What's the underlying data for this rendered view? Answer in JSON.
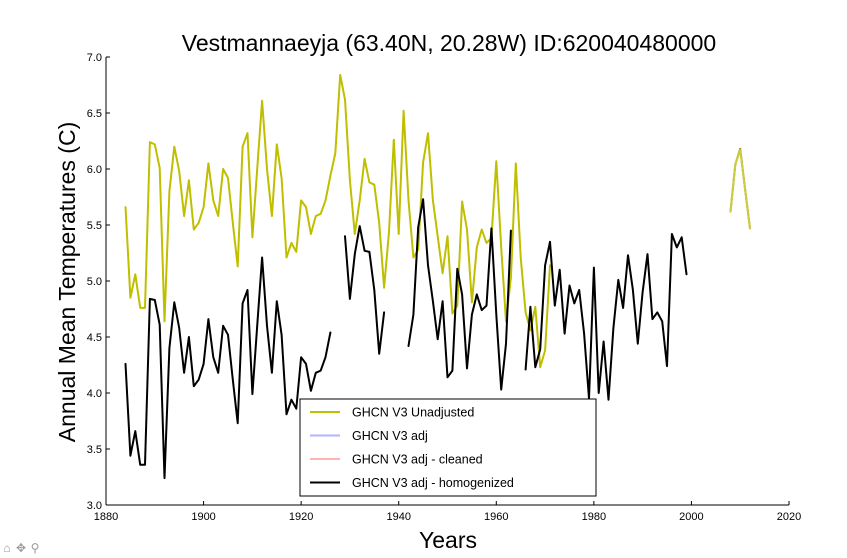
{
  "figure": {
    "title": "Vestmannaeyja (63.40N, 20.28W) ID:620040480000",
    "toolbar": [
      {
        "name": "home-icon",
        "glyph": "⌂"
      },
      {
        "name": "pan-icon",
        "glyph": "✥"
      },
      {
        "name": "zoom-icon",
        "glyph": "⚲"
      }
    ]
  },
  "chart_data": {
    "type": "line",
    "title": "Vestmannaeyja (63.40N, 20.28W) ID:620040480000",
    "xlabel": "Years",
    "ylabel": "Annual Mean Temperatures (C)",
    "xlim": [
      1880,
      2020
    ],
    "ylim": [
      3.0,
      7.0
    ],
    "xticks": [
      1880,
      1900,
      1920,
      1940,
      1960,
      1980,
      2000,
      2020
    ],
    "yticks": [
      3.0,
      3.5,
      4.0,
      4.5,
      5.0,
      5.5,
      6.0,
      6.5,
      7.0
    ],
    "grid": false,
    "legend_position": "lower-center",
    "series": [
      {
        "name": "GHCN V3 Unadjusted",
        "color": "#bfbf00",
        "segments": [
          [
            [
              1884,
              5.66
            ],
            [
              1885,
              4.85
            ],
            [
              1886,
              5.06
            ],
            [
              1887,
              4.76
            ],
            [
              1888,
              4.76
            ],
            [
              1889,
              6.24
            ],
            [
              1890,
              6.22
            ],
            [
              1891,
              6.01
            ],
            [
              1892,
              4.64
            ],
            [
              1893,
              5.8
            ],
            [
              1894,
              6.2
            ],
            [
              1895,
              5.98
            ],
            [
              1896,
              5.58
            ],
            [
              1897,
              5.9
            ],
            [
              1898,
              5.46
            ],
            [
              1899,
              5.52
            ],
            [
              1900,
              5.66
            ],
            [
              1901,
              6.05
            ],
            [
              1902,
              5.72
            ],
            [
              1903,
              5.58
            ],
            [
              1904,
              6.0
            ],
            [
              1905,
              5.92
            ],
            [
              1906,
              5.52
            ],
            [
              1907,
              5.13
            ],
            [
              1908,
              6.2
            ],
            [
              1909,
              6.32
            ],
            [
              1910,
              5.39
            ],
            [
              1911,
              6.0
            ],
            [
              1912,
              6.61
            ],
            [
              1913,
              6.0
            ],
            [
              1914,
              5.58
            ],
            [
              1915,
              6.22
            ],
            [
              1916,
              5.92
            ],
            [
              1917,
              5.21
            ],
            [
              1918,
              5.34
            ],
            [
              1919,
              5.26
            ],
            [
              1920,
              5.72
            ],
            [
              1921,
              5.66
            ],
            [
              1922,
              5.42
            ],
            [
              1923,
              5.58
            ],
            [
              1924,
              5.6
            ],
            [
              1925,
              5.72
            ],
            [
              1926,
              5.94
            ],
            [
              1927,
              6.14
            ],
            [
              1928,
              6.84
            ],
            [
              1929,
              6.62
            ]
          ],
          [
            [
              1929,
              6.62
            ],
            [
              1930,
              5.9
            ],
            [
              1931,
              5.42
            ],
            [
              1932,
              5.72
            ],
            [
              1933,
              6.09
            ],
            [
              1934,
              5.88
            ],
            [
              1935,
              5.86
            ],
            [
              1936,
              5.52
            ],
            [
              1937,
              4.94
            ],
            [
              1938,
              5.44
            ],
            [
              1939,
              6.26
            ]
          ],
          [
            [
              1939,
              6.26
            ],
            [
              1940,
              5.42
            ],
            [
              1941,
              6.52
            ],
            [
              1942,
              5.72
            ],
            [
              1943,
              5.21
            ],
            [
              1944,
              5.28
            ],
            [
              1945,
              6.06
            ],
            [
              1946,
              6.32
            ],
            [
              1947,
              5.72
            ],
            [
              1948,
              5.4
            ],
            [
              1949,
              5.07
            ],
            [
              1950,
              5.4
            ],
            [
              1951,
              4.71
            ],
            [
              1952,
              4.78
            ],
            [
              1953,
              5.71
            ],
            [
              1954,
              5.46
            ],
            [
              1955,
              4.81
            ],
            [
              1956,
              5.3
            ],
            [
              1957,
              5.46
            ],
            [
              1958,
              5.34
            ],
            [
              1959,
              5.38
            ],
            [
              1960,
              6.07
            ],
            [
              1961,
              5.3
            ],
            [
              1962,
              4.64
            ],
            [
              1963,
              5.03
            ],
            [
              1964,
              6.05
            ],
            [
              1965,
              5.21
            ],
            [
              1966,
              4.72
            ],
            [
              1967,
              4.56
            ],
            [
              1968,
              4.77
            ],
            [
              1969,
              4.23
            ],
            [
              1970,
              4.38
            ],
            [
              1971,
              5.14
            ]
          ]
        ]
      },
      {
        "name": "GHCN V3 adj",
        "color": "#b3b3ff",
        "segments": []
      },
      {
        "name": "GHCN V3 adj - cleaned",
        "color": "#ffb3b3",
        "segments": []
      },
      {
        "name": "GHCN V3 adj - homogenized",
        "color": "#000000",
        "segments": [
          [
            [
              1884,
              4.26
            ],
            [
              1885,
              3.44
            ],
            [
              1886,
              3.66
            ],
            [
              1887,
              3.36
            ],
            [
              1888,
              3.36
            ],
            [
              1889,
              4.84
            ],
            [
              1890,
              4.83
            ],
            [
              1891,
              4.61
            ],
            [
              1892,
              3.24
            ],
            [
              1893,
              4.4
            ],
            [
              1894,
              4.81
            ],
            [
              1895,
              4.58
            ],
            [
              1896,
              4.18
            ],
            [
              1897,
              4.5
            ],
            [
              1898,
              4.06
            ],
            [
              1899,
              4.12
            ],
            [
              1900,
              4.26
            ],
            [
              1901,
              4.66
            ],
            [
              1902,
              4.32
            ],
            [
              1903,
              4.18
            ],
            [
              1904,
              4.6
            ],
            [
              1905,
              4.52
            ],
            [
              1906,
              4.12
            ],
            [
              1907,
              3.73
            ],
            [
              1908,
              4.8
            ],
            [
              1909,
              4.92
            ],
            [
              1910,
              3.99
            ],
            [
              1911,
              4.6
            ],
            [
              1912,
              5.21
            ],
            [
              1913,
              4.6
            ],
            [
              1914,
              4.18
            ],
            [
              1915,
              4.82
            ],
            [
              1916,
              4.52
            ],
            [
              1917,
              3.81
            ],
            [
              1918,
              3.94
            ],
            [
              1919,
              3.86
            ],
            [
              1920,
              4.32
            ],
            [
              1921,
              4.26
            ],
            [
              1922,
              4.02
            ],
            [
              1923,
              4.18
            ],
            [
              1924,
              4.2
            ],
            [
              1925,
              4.32
            ],
            [
              1926,
              4.54
            ]
          ],
          [
            [
              1929,
              5.4
            ],
            [
              1930,
              4.84
            ],
            [
              1931,
              5.24
            ],
            [
              1932,
              5.49
            ],
            [
              1933,
              5.27
            ],
            [
              1934,
              5.26
            ],
            [
              1935,
              4.92
            ],
            [
              1936,
              4.35
            ],
            [
              1937,
              4.72
            ]
          ],
          [
            [
              1942,
              4.42
            ],
            [
              1943,
              4.7
            ],
            [
              1944,
              5.48
            ],
            [
              1945,
              5.73
            ],
            [
              1946,
              5.14
            ],
            [
              1947,
              4.82
            ],
            [
              1948,
              4.48
            ],
            [
              1949,
              4.82
            ],
            [
              1950,
              4.14
            ],
            [
              1951,
              4.2
            ],
            [
              1952,
              5.11
            ],
            [
              1953,
              4.88
            ],
            [
              1954,
              4.22
            ],
            [
              1955,
              4.7
            ],
            [
              1956,
              4.88
            ],
            [
              1957,
              4.74
            ],
            [
              1958,
              4.78
            ],
            [
              1959,
              5.47
            ],
            [
              1960,
              4.7
            ],
            [
              1961,
              4.03
            ],
            [
              1962,
              4.44
            ],
            [
              1963,
              5.45
            ]
          ],
          [
            [
              1966,
              4.21
            ],
            [
              1967,
              4.77
            ],
            [
              1968,
              4.23
            ],
            [
              1969,
              4.39
            ],
            [
              1970,
              5.14
            ],
            [
              1971,
              5.35
            ],
            [
              1972,
              4.78
            ],
            [
              1973,
              5.1
            ],
            [
              1974,
              4.53
            ],
            [
              1975,
              4.96
            ],
            [
              1976,
              4.8
            ],
            [
              1977,
              4.92
            ],
            [
              1978,
              4.53
            ],
            [
              1979,
              3.95
            ],
            [
              1980,
              5.12
            ],
            [
              1981,
              4.0
            ],
            [
              1982,
              4.46
            ],
            [
              1983,
              3.94
            ],
            [
              1984,
              4.58
            ],
            [
              1985,
              5.01
            ],
            [
              1986,
              4.76
            ],
            [
              1987,
              5.23
            ],
            [
              1988,
              4.92
            ],
            [
              1989,
              4.44
            ],
            [
              1990,
              4.9
            ],
            [
              1991,
              5.24
            ],
            [
              1992,
              4.66
            ],
            [
              1993,
              4.72
            ],
            [
              1994,
              4.64
            ],
            [
              1995,
              4.24
            ],
            [
              1996,
              5.42
            ],
            [
              1997,
              5.3
            ],
            [
              1998,
              5.39
            ],
            [
              1999,
              5.06
            ]
          ]
        ]
      },
      {
        "name": "",
        "color": "#8c8c00",
        "segments": [
          [
            [
              2008,
              5.62
            ],
            [
              2009,
              6.04
            ],
            [
              2010,
              6.18
            ],
            [
              2011,
              5.82
            ],
            [
              2012,
              5.47
            ]
          ]
        ]
      },
      {
        "name": "",
        "color": "#cccc44",
        "segments": [
          [
            [
              2008,
              5.62
            ],
            [
              2009,
              6.04
            ],
            [
              2010,
              6.17
            ],
            [
              2011,
              5.82
            ],
            [
              2012,
              5.47
            ]
          ]
        ]
      }
    ],
    "legend": [
      {
        "label": "GHCN V3 Unadjusted",
        "color": "#bfbf00"
      },
      {
        "label": "GHCN V3 adj",
        "color": "#b3b3ff"
      },
      {
        "label": "GHCN V3 adj - cleaned",
        "color": "#ffb3b3"
      },
      {
        "label": "GHCN V3 adj - homogenized",
        "color": "#000000"
      }
    ]
  }
}
